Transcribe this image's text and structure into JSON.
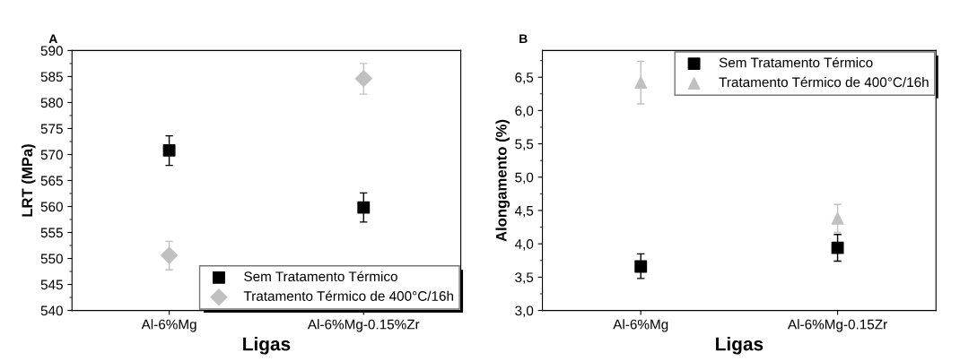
{
  "chart_data": [
    {
      "type": "scatter",
      "title": "A",
      "xlabel": "Ligas",
      "ylabel": "LRT (MPa)",
      "categories": [
        "Al-6%Mg",
        "Al-6%Mg-0.15%Zr"
      ],
      "ylim": [
        540,
        590
      ],
      "yticks": [
        540,
        545,
        550,
        555,
        560,
        565,
        570,
        575,
        580,
        585,
        590
      ],
      "legend": "bottom right",
      "grid": false,
      "series": [
        {
          "name": "Sem Tratamento Térmico",
          "color": "#000000",
          "marker": "square",
          "values": [
            570.8,
            559.8
          ],
          "errors": [
            [
              567.9,
              573.6
            ],
            [
              557.0,
              562.6
            ]
          ]
        },
        {
          "name": "Tratamento Térmico de 400°C/16h",
          "color": "#c0c0c0",
          "marker": "diamond",
          "values": [
            550.6,
            584.6
          ],
          "errors": [
            [
              547.8,
              553.3
            ],
            [
              581.6,
              587.5
            ]
          ]
        }
      ]
    },
    {
      "type": "scatter",
      "title": "B",
      "xlabel": "Ligas",
      "ylabel": "Alongamento (%)",
      "categories": [
        "Al-6%Mg",
        "Al-6%Mg-0.15Zr"
      ],
      "ylim": [
        3.0,
        6.9
      ],
      "yticks": [
        {
          "value": 3.0,
          "label": "3,0"
        },
        {
          "value": 3.5,
          "label": "3,5"
        },
        {
          "value": 4.0,
          "label": "4,0"
        },
        {
          "value": 4.5,
          "label": "4,5"
        },
        {
          "value": 5.0,
          "label": "5,0"
        },
        {
          "value": 5.5,
          "label": "5,5"
        },
        {
          "value": 6.0,
          "label": "6,0"
        },
        {
          "value": 6.5,
          "label": "6,5"
        }
      ],
      "legend": "top right",
      "grid": false,
      "series": [
        {
          "name": "Sem Tratamento Térmico",
          "color": "#000000",
          "marker": "square",
          "values": [
            3.66,
            3.94
          ],
          "errors": [
            [
              3.48,
              3.85
            ],
            [
              3.74,
              4.14
            ]
          ]
        },
        {
          "name": "Tratamento Térmico de 400°C/16h",
          "color": "#c0c0c0",
          "marker": "triangle",
          "values": [
            6.42,
            4.38
          ],
          "errors": [
            [
              6.1,
              6.74
            ],
            [
              4.17,
              4.59
            ]
          ]
        }
      ]
    }
  ]
}
